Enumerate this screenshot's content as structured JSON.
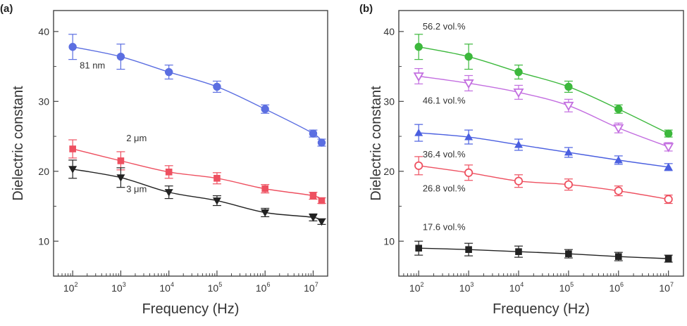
{
  "chart_data": [
    {
      "panel_label": "(a)",
      "type": "line",
      "xlabel": "Frequency (Hz)",
      "ylabel": "Dielectric constant",
      "xscale": "log",
      "xlim": [
        40,
        20000000
      ],
      "ylim": [
        5,
        43
      ],
      "yticks": [
        10,
        20,
        30,
        40
      ],
      "xticks": [
        100,
        1000,
        10000,
        100000,
        1000000,
        10000000
      ],
      "xtick_labels": [
        {
          "base": "10",
          "exp": "2"
        },
        {
          "base": "10",
          "exp": "3"
        },
        {
          "base": "10",
          "exp": "4"
        },
        {
          "base": "10",
          "exp": "5"
        },
        {
          "base": "10",
          "exp": "6"
        },
        {
          "base": "10",
          "exp": "7"
        }
      ],
      "grid": false,
      "series": [
        {
          "name": "81 nm",
          "color": "#5b6ee1",
          "marker": "circle",
          "label_at": [
            140,
            34.7
          ],
          "x": [
            100,
            1000,
            10000,
            100000,
            1000000,
            10000000,
            15000000
          ],
          "y": [
            37.8,
            36.4,
            34.2,
            32.1,
            28.9,
            25.4,
            24.1
          ],
          "err": [
            1.8,
            1.8,
            1.0,
            0.8,
            0.6,
            0.5,
            0.5
          ]
        },
        {
          "name": "2 μm",
          "color": "#ee5060",
          "marker": "square",
          "label_at": [
            1300,
            24.3
          ],
          "x": [
            100,
            1000,
            10000,
            100000,
            1000000,
            10000000,
            15000000
          ],
          "y": [
            23.2,
            21.5,
            19.9,
            19.0,
            17.5,
            16.5,
            15.8
          ],
          "err": [
            1.3,
            1.3,
            0.9,
            0.8,
            0.6,
            0.5,
            0.4
          ]
        },
        {
          "name": "3 μm",
          "color": "#222222",
          "marker": "triangle-down",
          "label_at": [
            1300,
            17.0
          ],
          "x": [
            100,
            1000,
            10000,
            100000,
            1000000,
            10000000,
            15000000
          ],
          "y": [
            20.3,
            19.1,
            17.0,
            15.8,
            14.1,
            13.4,
            12.8
          ],
          "err": [
            1.3,
            1.4,
            0.9,
            0.7,
            0.6,
            0.5,
            0.4
          ]
        }
      ]
    },
    {
      "panel_label": "(b)",
      "type": "line",
      "xlabel": "Frequency (Hz)",
      "ylabel": "Dielectric constant",
      "xscale": "log",
      "xlim": [
        40,
        20000000
      ],
      "ylim": [
        5,
        43
      ],
      "yticks": [
        10,
        20,
        30,
        40
      ],
      "xticks": [
        100,
        1000,
        10000,
        100000,
        1000000,
        10000000
      ],
      "xtick_labels": [
        {
          "base": "10",
          "exp": "2"
        },
        {
          "base": "10",
          "exp": "3"
        },
        {
          "base": "10",
          "exp": "4"
        },
        {
          "base": "10",
          "exp": "5"
        },
        {
          "base": "10",
          "exp": "6"
        },
        {
          "base": "10",
          "exp": "7"
        }
      ],
      "grid": false,
      "series": [
        {
          "name": "56.2 vol.%",
          "color": "#3cb83c",
          "marker": "circle",
          "label_at": [
            120,
            40.3
          ],
          "x": [
            100,
            1000,
            10000,
            100000,
            1000000,
            10000000
          ],
          "y": [
            37.8,
            36.4,
            34.2,
            32.1,
            28.9,
            25.4
          ],
          "err": [
            1.8,
            1.8,
            1.0,
            0.8,
            0.6,
            0.5
          ]
        },
        {
          "name": "46.1 vol.%",
          "color": "#c36ee0",
          "marker": "triangle-down-open",
          "label_at": [
            120,
            29.7
          ],
          "x": [
            100,
            1000,
            10000,
            100000,
            1000000,
            10000000
          ],
          "y": [
            33.6,
            32.6,
            31.3,
            29.4,
            26.2,
            23.5
          ],
          "err": [
            1.1,
            1.1,
            1.0,
            0.9,
            0.7,
            0.6
          ]
        },
        {
          "name": "36.4 vol.%",
          "color": "#4a5fe0",
          "marker": "triangle-up",
          "label_at": [
            120,
            22.0
          ],
          "x": [
            100,
            1000,
            10000,
            100000,
            1000000,
            10000000
          ],
          "y": [
            25.5,
            24.9,
            23.8,
            22.7,
            21.6,
            20.6
          ],
          "err": [
            1.2,
            1.0,
            0.8,
            0.7,
            0.6,
            0.5
          ]
        },
        {
          "name": "26.8 vol.%",
          "color": "#ee5060",
          "marker": "circle-open",
          "label_at": [
            120,
            17.1
          ],
          "x": [
            100,
            1000,
            10000,
            100000,
            1000000,
            10000000
          ],
          "y": [
            20.8,
            19.8,
            18.6,
            18.1,
            17.2,
            16.0
          ],
          "err": [
            1.3,
            1.1,
            0.9,
            0.8,
            0.7,
            0.6
          ]
        },
        {
          "name": "17.6 vol.%",
          "color": "#222222",
          "marker": "square",
          "label_at": [
            120,
            11.6
          ],
          "x": [
            100,
            1000,
            10000,
            100000,
            1000000,
            10000000
          ],
          "y": [
            9.0,
            8.8,
            8.5,
            8.2,
            7.8,
            7.5
          ],
          "err": [
            1.0,
            0.9,
            0.8,
            0.6,
            0.6,
            0.5
          ]
        }
      ]
    }
  ]
}
